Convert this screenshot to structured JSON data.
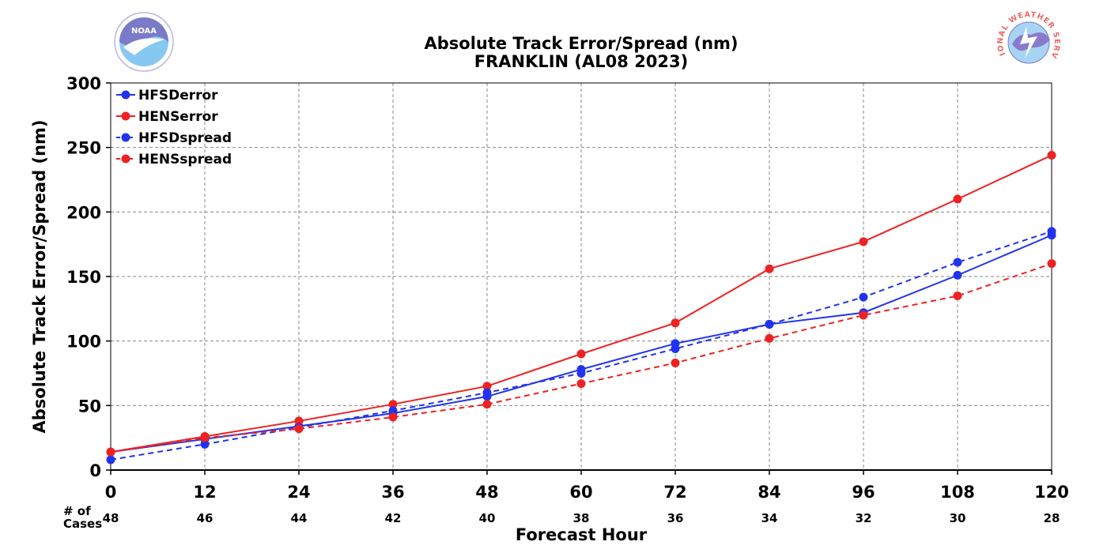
{
  "colors": {
    "blue": "#2233ee",
    "red": "#ee2222",
    "grid": "#888888"
  },
  "logos": {
    "noaa": {
      "name": "noaa-logo",
      "text": "NOAA"
    },
    "nws": {
      "name": "nws-logo",
      "text": "NATIONAL WEATHER SERVICE"
    }
  },
  "cases_label": [
    "# of",
    "Cases"
  ],
  "cases": [
    48,
    46,
    44,
    42,
    40,
    38,
    36,
    34,
    32,
    30,
    28
  ],
  "chart_data": {
    "type": "line",
    "title": "Absolute Track Error/Spread (nm)",
    "subtitle": "FRANKLIN (AL08 2023)",
    "xlabel": "Forecast Hour",
    "ylabel": "Absolute Track Error/Spread (nm)",
    "x": [
      0,
      12,
      24,
      36,
      48,
      60,
      72,
      84,
      96,
      108,
      120
    ],
    "xlim": [
      0,
      120
    ],
    "ylim": [
      0,
      300
    ],
    "yticks": [
      0,
      50,
      100,
      150,
      200,
      250,
      300
    ],
    "grid": true,
    "legend_position": "top-left",
    "series": [
      {
        "name": "HFSDerror",
        "color": "#2233ee",
        "style": "solid",
        "values": [
          14,
          24,
          34,
          44,
          57,
          78,
          98,
          113,
          122,
          151,
          182
        ]
      },
      {
        "name": "HENSerror",
        "color": "#ee2222",
        "style": "solid",
        "values": [
          14,
          26,
          38,
          51,
          65,
          90,
          114,
          156,
          177,
          210,
          244
        ]
      },
      {
        "name": "HFSDspread",
        "color": "#2233ee",
        "style": "dashed",
        "values": [
          8,
          20,
          33,
          46,
          60,
          75,
          94,
          113,
          134,
          161,
          185
        ]
      },
      {
        "name": "HENSspread",
        "color": "#ee2222",
        "style": "dashed",
        "values": [
          14,
          25,
          32,
          41,
          51,
          67,
          83,
          102,
          120,
          135,
          160
        ]
      }
    ]
  }
}
